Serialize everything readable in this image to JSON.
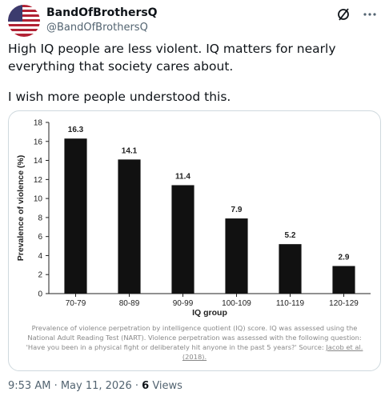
{
  "tweet": {
    "display_name": "BandOfBrothersQ",
    "handle": "@BandOfBrothersQ",
    "text": [
      "High IQ people are less violent. IQ matters for nearly everything that society cares about.",
      "I wish more people understood this."
    ],
    "caption": "Prevalence of violence perpetration by intelligence quotient (IQ) score. IQ was assessed using the National Adult Reading Test (NART). Violence perpetration was assessed with the following question: 'Have you been in a physical fight or deliberately hit anyone in the past 5 years?' Source:",
    "caption_link": "Jacob et al. (2018).",
    "timestamp": "9:53 AM · May 11, 2026 ·",
    "views": "6",
    "views_label": "Views"
  },
  "chart_data": {
    "type": "bar",
    "categories": [
      "70-79",
      "80-89",
      "90-99",
      "100-109",
      "110-119",
      "120-129"
    ],
    "values": [
      16.3,
      14.1,
      11.4,
      7.9,
      5.2,
      2.9
    ],
    "color": "#111111",
    "xlabel": "IQ group",
    "ylabel": "Prevalence of violence (%)",
    "ylim": [
      0,
      18
    ],
    "yticks": [
      0,
      2,
      4,
      6,
      8,
      10,
      12,
      14,
      16,
      18
    ]
  }
}
